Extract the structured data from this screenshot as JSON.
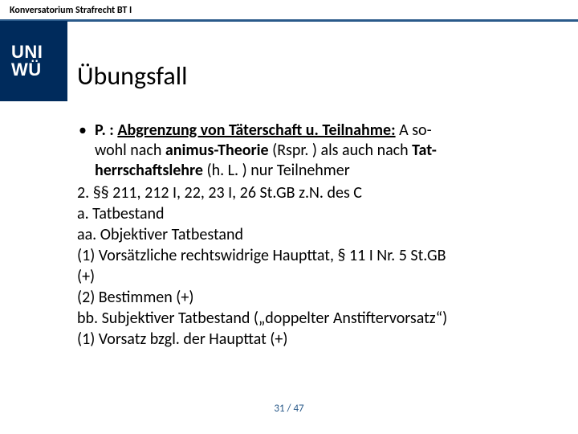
{
  "header": {
    "course_label": "Konversatorium Strafrecht BT I"
  },
  "logo": {
    "line1": "UNI",
    "line2": "WÜ"
  },
  "title": "Übungsfall",
  "bullet": {
    "lead": "P. : ",
    "underlined": "Abgrenzung von Täterschaft u. Teilnahme:",
    "rest1": " A so-",
    "line2a": "wohl nach ",
    "line2b": "animus-Theorie",
    "line2c": " (Rspr. ) als auch nach ",
    "line2d": "Tat-",
    "line3a": "herrschaftslehre",
    "line3b": " (h. L. ) nur Teilnehmer"
  },
  "lines": {
    "l2": "2. §§ 211, 212 I, 22, 23 I, 26 St.GB z.N. des C",
    "l3": "a. Tatbestand",
    "l4": "aa. Objektiver Tatbestand",
    "l5": "(1) Vorsätzliche rechtswidrige Haupttat, § 11 I Nr. 5 St.GB",
    "l6": "(+)",
    "l7": "(2) Bestimmen (+)",
    "l8": "bb. Subjektiver Tatbestand („doppelter Anstiftervorsatz“)",
    "l9": "(1) Vorsatz bzgl. der Haupttat (+)"
  },
  "page": {
    "current": "31",
    "sep": " / ",
    "total": "47"
  },
  "colors": {
    "rule": "#2a5a8a",
    "logo_bg": "#002b5c"
  }
}
